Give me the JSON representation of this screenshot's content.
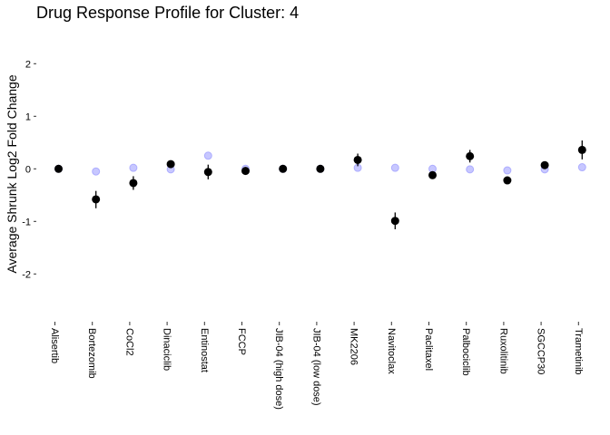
{
  "chart_data": {
    "type": "scatter",
    "title": "Drug Response Profile for Cluster:  4",
    "ylabel": "Average Shrunk Log2 Fold Change",
    "xlabel": "",
    "ylim": [
      -2.65,
      2.35
    ],
    "yticks": [
      -2,
      -1,
      0,
      1,
      2
    ],
    "yticklabels": [
      "-2",
      "-1",
      "0",
      "1",
      "2"
    ],
    "grid": false,
    "legend": "none",
    "categories": [
      "Alisertib",
      "Bortezomib",
      "CoCl2",
      "Dinaciclib",
      "Entinostat",
      "FCCP",
      "JIB-04 (high dose)",
      "JIB-04 (low dose)",
      "MK2206",
      "Navitoclax",
      "Paclitaxel",
      "Palbociclib",
      "Ruxolitinib",
      "SGCCP30",
      "Trametinib"
    ],
    "series": [
      {
        "color": "#9999ff",
        "values": [
          0.0,
          -0.05,
          0.02,
          -0.01,
          0.25,
          0.0,
          0.0,
          0.0,
          0.02,
          0.02,
          0.0,
          -0.01,
          -0.03,
          -0.01,
          0.03
        ]
      },
      {
        "color": "#000000",
        "values": [
          0.0,
          -0.58,
          -0.27,
          0.09,
          -0.06,
          -0.04,
          0.0,
          0.0,
          0.17,
          -0.99,
          -0.12,
          0.24,
          -0.22,
          0.07,
          0.36
        ],
        "error_low": [
          0.0,
          -0.75,
          -0.4,
          0.06,
          -0.2,
          -0.08,
          0.0,
          0.0,
          0.05,
          -1.15,
          -0.16,
          0.12,
          -0.26,
          0.0,
          0.18
        ],
        "error_high": [
          0.0,
          -0.42,
          -0.14,
          0.12,
          0.08,
          0.0,
          0.0,
          0.0,
          0.29,
          -0.83,
          -0.08,
          0.36,
          -0.18,
          0.14,
          0.54
        ]
      }
    ]
  }
}
